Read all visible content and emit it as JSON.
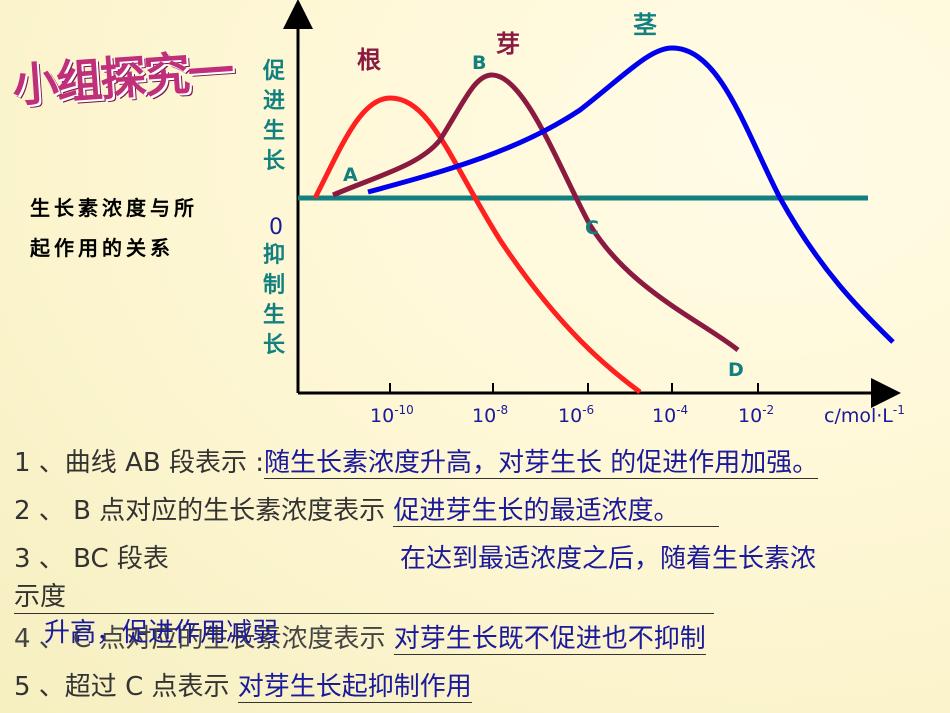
{
  "title": "小组探究一",
  "caption": [
    "生长素浓度与所",
    "起作用的关系"
  ],
  "diagram": {
    "y_positive": "促进生长",
    "y_zero": "0",
    "y_negative": "抑制生长",
    "curves": [
      "根",
      "芽",
      "茎"
    ],
    "points": [
      "A",
      "B",
      "C",
      "D"
    ],
    "x_labels": [
      {
        "base": "10",
        "exp": "-10"
      },
      {
        "base": "10",
        "exp": "-8"
      },
      {
        "base": "10",
        "exp": "-6"
      },
      {
        "base": "10",
        "exp": "-4"
      },
      {
        "base": "10",
        "exp": "-2"
      }
    ],
    "x_unit": {
      "base": "c/mol·L",
      "exp": "-1"
    }
  },
  "questions": [
    {
      "prompt": "1 、曲线 AB 段表示 :",
      "answer": "随生长素浓度升高，对芽生长  的促进作用加强。"
    },
    {
      "prompt": "2 、 B 点对应的生长素浓度表示",
      "answer": "促进芽生长的最适浓度。"
    },
    {
      "prompt": "3 、 BC 段表",
      "prompt_cont": "示度",
      "answer": "在达到最适浓度之后，随着生长素浓",
      "answer_cont": "升高，促进作用减弱"
    },
    {
      "prompt": "4 、 C 点对应的生长素浓度表示",
      "answer": "对芽生长既不促进也不抑制"
    },
    {
      "prompt": "5 、超过 C 点表示",
      "answer": "对芽生长起抑制作用"
    }
  ]
}
